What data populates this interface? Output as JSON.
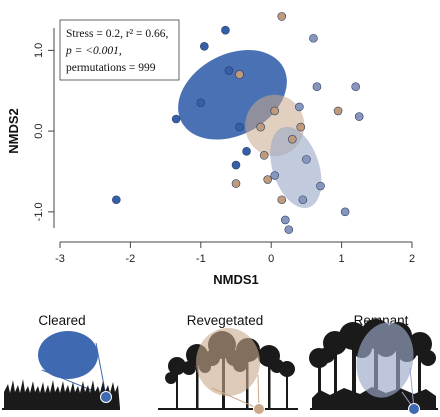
{
  "chart_data": {
    "type": "scatter",
    "title": "",
    "xlabel": "NMDS1",
    "ylabel": "NMDS2",
    "xlim": [
      -3,
      2
    ],
    "ylim": [
      -1.2,
      1.5
    ],
    "xticks": [
      "-3",
      "-2",
      "-1",
      "0",
      "1",
      "2"
    ],
    "xtick_values": [
      -3,
      -2,
      -1,
      0,
      1,
      2
    ],
    "yticks": [
      "-1.0",
      "0.0",
      "1.0"
    ],
    "ytick_values": [
      -1,
      0,
      1
    ],
    "stats_lines": [
      "Stress = 0.2, r² = 0.66,",
      "p = <0.001,",
      "permutations = 999"
    ],
    "colors": {
      "Cleared": "#3f69b0",
      "Revegetated": "#c9a88a",
      "Remnant": "#9aa8c8"
    },
    "series": [
      {
        "name": "Cleared",
        "color": "#3f69b0",
        "ellipse": {
          "cx": -0.55,
          "cy": 0.45,
          "rx": 0.82,
          "ry": 0.5,
          "angle": 28
        },
        "x": [
          -0.3,
          -0.65,
          -0.95,
          -0.6,
          -1.0,
          -1.35,
          -0.45,
          -0.35,
          -0.5,
          -2.2
        ],
        "y": [
          1.78,
          1.25,
          1.05,
          0.75,
          0.35,
          0.15,
          0.05,
          -0.25,
          -0.42,
          -0.85
        ]
      },
      {
        "name": "Revegetated",
        "color": "#c9a88a",
        "ellipse": {
          "cx": 0.05,
          "cy": 0.07,
          "rx": 0.42,
          "ry": 0.38,
          "angle": 0
        },
        "x": [
          0.15,
          -0.45,
          0.05,
          -0.15,
          0.42,
          0.3,
          0.95,
          -0.1,
          -0.5,
          -0.05,
          0.15
        ],
        "y": [
          1.42,
          0.7,
          0.25,
          0.05,
          0.05,
          -0.1,
          0.25,
          -0.3,
          -0.65,
          -0.6,
          -0.85
        ]
      },
      {
        "name": "Remnant",
        "color": "#9aa8c8",
        "ellipse": {
          "cx": 0.35,
          "cy": -0.45,
          "rx": 0.33,
          "ry": 0.52,
          "angle": 18
        },
        "x": [
          0.6,
          0.65,
          1.2,
          1.25,
          0.5,
          0.05,
          0.7,
          0.45,
          0.2,
          1.05,
          0.25,
          0.4
        ],
        "y": [
          1.15,
          0.55,
          0.55,
          0.18,
          -0.35,
          -0.55,
          -0.68,
          -0.85,
          -1.1,
          -1.0,
          -1.22,
          0.3
        ]
      }
    ],
    "panels": [
      {
        "label": "Cleared",
        "color": "#3f69b0"
      },
      {
        "label": "Revegetated",
        "color": "#c9a88a"
      },
      {
        "label": "Remnant",
        "color": "#9aa8c8"
      }
    ]
  }
}
